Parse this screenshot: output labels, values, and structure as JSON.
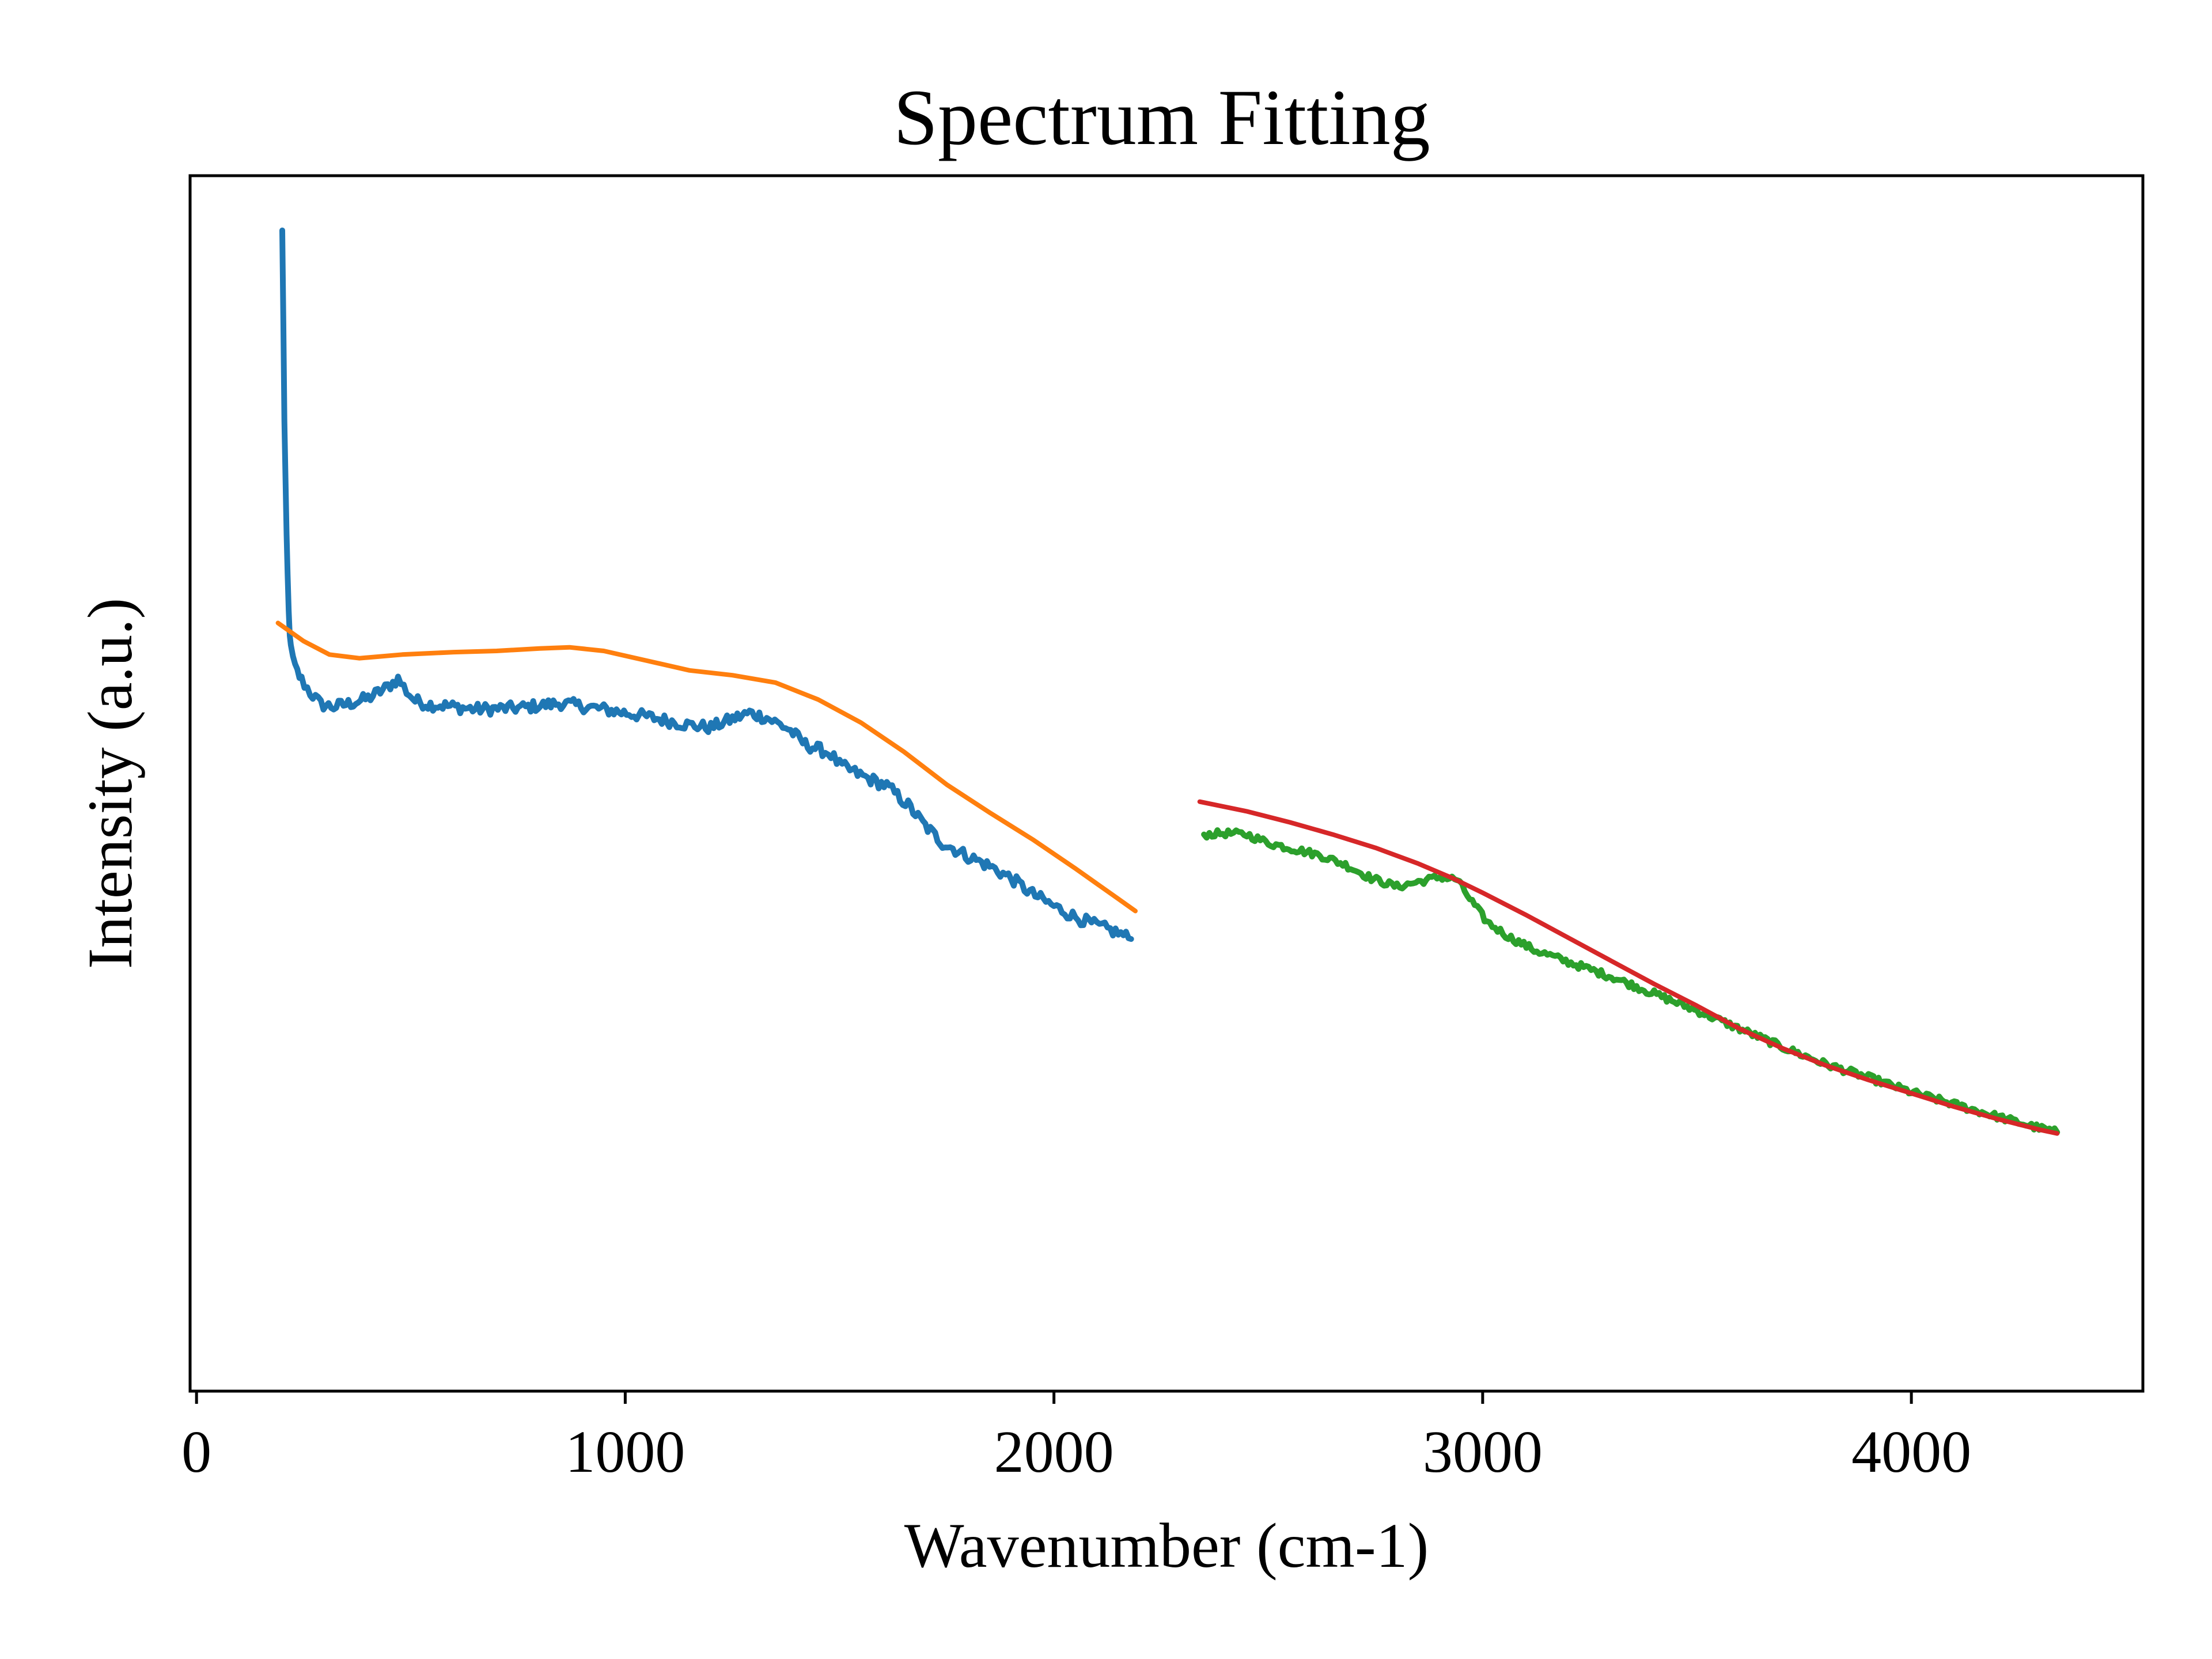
{
  "chart_data": {
    "type": "line",
    "title": "Spectrum Fitting",
    "xlabel": "Wavenumber (cm-1)",
    "ylabel": "Intensity (a.u.)",
    "xlim": [
      -15,
      4540
    ],
    "ylim": [
      0,
      100
    ],
    "xticks": [
      0,
      1000,
      2000,
      3000,
      4000
    ],
    "xtick_labels": [
      "0",
      "1000",
      "2000",
      "3000",
      "4000"
    ],
    "yticks": [],
    "grid": false,
    "legend": "none",
    "series": [
      {
        "color": "#1f77b4",
        "noise": 0.5,
        "points": [
          [
            200,
            95.5
          ],
          [
            205,
            80
          ],
          [
            210,
            70
          ],
          [
            215,
            64
          ],
          [
            220,
            61
          ],
          [
            230,
            59.5
          ],
          [
            245,
            58.5
          ],
          [
            265,
            57.5
          ],
          [
            290,
            56.5
          ],
          [
            320,
            56.3
          ],
          [
            360,
            56.6
          ],
          [
            400,
            57
          ],
          [
            440,
            57.8
          ],
          [
            470,
            58.6
          ],
          [
            490,
            57.6
          ],
          [
            510,
            56.8
          ],
          [
            540,
            56.5
          ],
          [
            580,
            56.4
          ],
          [
            650,
            56.1
          ],
          [
            750,
            56.2
          ],
          [
            850,
            56.6
          ],
          [
            950,
            56.1
          ],
          [
            1050,
            55.5
          ],
          [
            1150,
            54.8
          ],
          [
            1200,
            54.6
          ],
          [
            1250,
            55.3
          ],
          [
            1290,
            55.8
          ],
          [
            1330,
            55.4
          ],
          [
            1380,
            54.5
          ],
          [
            1420,
            53.2
          ],
          [
            1460,
            52.7
          ],
          [
            1480,
            52.4
          ],
          [
            1500,
            51.5
          ],
          [
            1560,
            50.5
          ],
          [
            1610,
            49.8
          ],
          [
            1660,
            48.2
          ],
          [
            1700,
            46.5
          ],
          [
            1740,
            45.1
          ],
          [
            1800,
            44
          ],
          [
            1850,
            43.2
          ],
          [
            1900,
            42.2
          ],
          [
            1950,
            40.9
          ],
          [
            2000,
            39.9
          ],
          [
            2050,
            39
          ],
          [
            2100,
            38.3
          ],
          [
            2150,
            37.7
          ],
          [
            2180,
            37.2
          ]
        ]
      },
      {
        "color": "#ff7f0e",
        "noise": 0,
        "points": [
          [
            190,
            63.2
          ],
          [
            250,
            61.7
          ],
          [
            310,
            60.6
          ],
          [
            380,
            60.3
          ],
          [
            480,
            60.6
          ],
          [
            600,
            60.8
          ],
          [
            700,
            60.9
          ],
          [
            800,
            61.1
          ],
          [
            870,
            61.2
          ],
          [
            950,
            60.9
          ],
          [
            1050,
            60.1
          ],
          [
            1150,
            59.3
          ],
          [
            1250,
            58.9
          ],
          [
            1350,
            58.3
          ],
          [
            1450,
            56.9
          ],
          [
            1550,
            55
          ],
          [
            1650,
            52.6
          ],
          [
            1750,
            49.9
          ],
          [
            1850,
            47.6
          ],
          [
            1950,
            45.4
          ],
          [
            2050,
            43
          ],
          [
            2150,
            40.5
          ],
          [
            2190,
            39.5
          ]
        ]
      },
      {
        "color": "#2ca02c",
        "noise": 0.3,
        "points": [
          [
            2350,
            45.8
          ],
          [
            2400,
            45.9
          ],
          [
            2450,
            45.8
          ],
          [
            2500,
            45.1
          ],
          [
            2560,
            44.6
          ],
          [
            2620,
            44.1
          ],
          [
            2680,
            43.3
          ],
          [
            2740,
            42.2
          ],
          [
            2800,
            41.5
          ],
          [
            2850,
            41.9
          ],
          [
            2900,
            42.3
          ],
          [
            2940,
            42.1
          ],
          [
            2970,
            40.5
          ],
          [
            3010,
            38.6
          ],
          [
            3060,
            37.4
          ],
          [
            3120,
            36.3
          ],
          [
            3200,
            35.3
          ],
          [
            3300,
            34.1
          ],
          [
            3400,
            32.7
          ],
          [
            3500,
            31.3
          ],
          [
            3600,
            29.8
          ],
          [
            3700,
            28.3
          ],
          [
            3800,
            26.9
          ],
          [
            3900,
            25.8
          ],
          [
            4000,
            24.6
          ],
          [
            4100,
            23.6
          ],
          [
            4200,
            22.6
          ],
          [
            4280,
            21.8
          ],
          [
            4340,
            21.3
          ]
        ]
      },
      {
        "color": "#d62728",
        "noise": 0,
        "points": [
          [
            2340,
            48.5
          ],
          [
            2450,
            47.7
          ],
          [
            2550,
            46.8
          ],
          [
            2650,
            45.8
          ],
          [
            2750,
            44.7
          ],
          [
            2850,
            43.4
          ],
          [
            2930,
            42.2
          ],
          [
            3000,
            41
          ],
          [
            3100,
            39.2
          ],
          [
            3200,
            37.3
          ],
          [
            3300,
            35.4
          ],
          [
            3400,
            33.5
          ],
          [
            3500,
            31.7
          ],
          [
            3600,
            29.8
          ],
          [
            3700,
            28.2
          ],
          [
            3800,
            26.8
          ],
          [
            3900,
            25.6
          ],
          [
            4000,
            24.5
          ],
          [
            4100,
            23.4
          ],
          [
            4200,
            22.4
          ],
          [
            4300,
            21.5
          ],
          [
            4340,
            21.2
          ]
        ]
      }
    ]
  }
}
